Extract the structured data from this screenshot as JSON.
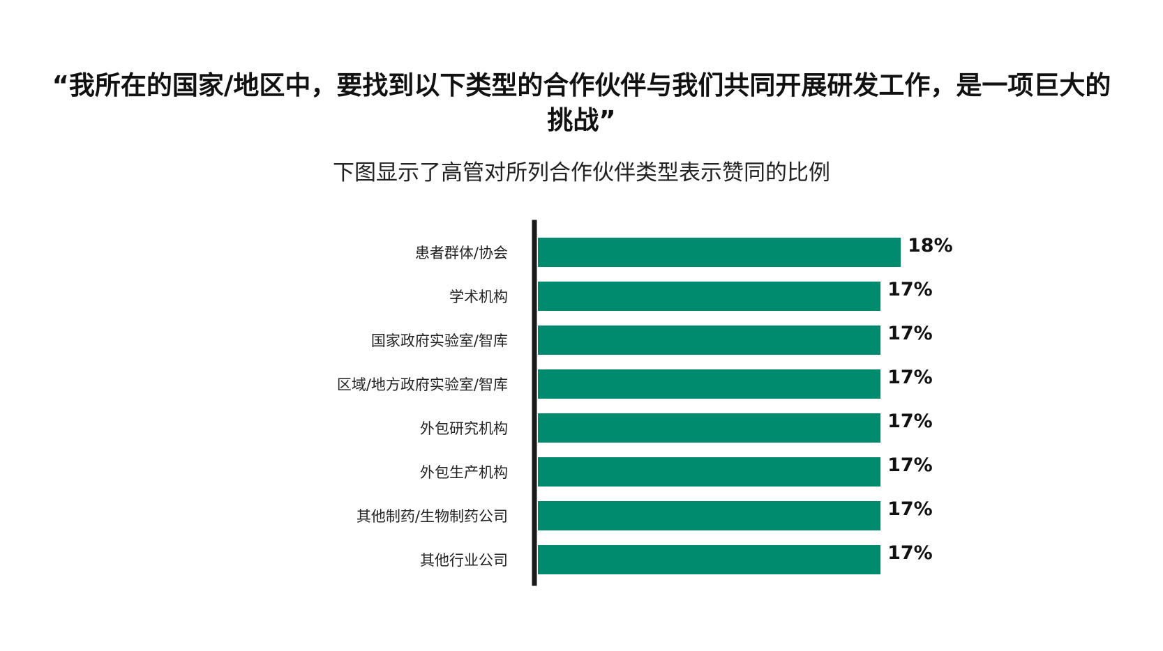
{
  "chart_data": {
    "type": "bar",
    "orientation": "horizontal",
    "title": "“我所在的国家/地区中，要找到以下类型的合作伙伴与我们共同开展研发工作，是一项巨大的挑战”",
    "subtitle": "下图显示了高管对所列合作伙伴类型表示赞同的比例",
    "categories": [
      "患者群体/协会",
      "学术机构",
      "国家政府实验室/智库",
      "区域/地方政府实验室/智库",
      "外包研究机构",
      "外包生产机构",
      "其他制药/生物制药公司",
      "其他行业公司"
    ],
    "values": [
      18,
      17,
      17,
      17,
      17,
      17,
      17,
      17
    ],
    "value_labels": [
      "18%",
      "17%",
      "17%",
      "17%",
      "17%",
      "17%",
      "17%",
      "17%"
    ],
    "unit": "%",
    "xlim": [
      0,
      18
    ],
    "grid": false,
    "legend": "none",
    "bar_color": "#008a6e",
    "axis_color": "#1a1a1a"
  }
}
